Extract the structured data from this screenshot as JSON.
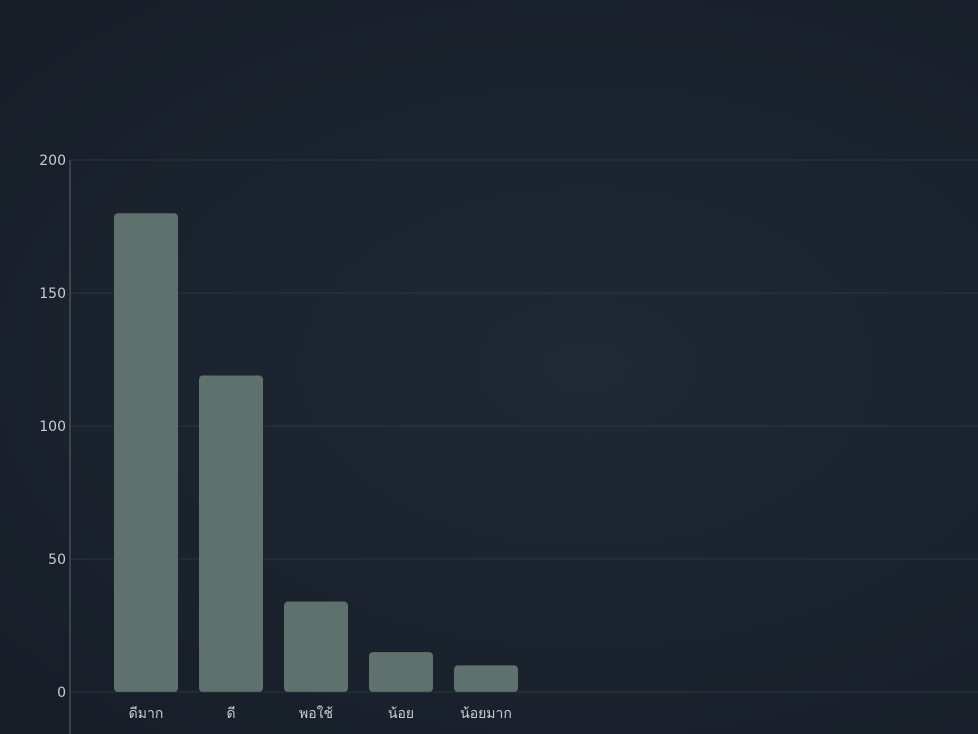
{
  "chart_data": {
    "type": "bar",
    "categories": [
      "ดีมาก",
      "ดี",
      "พอใช้",
      "น้อย",
      "น้อยมาก"
    ],
    "values": [
      180,
      119,
      34,
      15,
      10
    ],
    "title": "",
    "xlabel": "",
    "ylabel": "",
    "ylim": [
      0,
      200
    ],
    "yticks": [
      0,
      50,
      100,
      150,
      200
    ],
    "grid": true,
    "colors": {
      "bar": "#5f716d",
      "gridline": "#3a4350",
      "axis": "#8a919b",
      "text": "#c8ccd2"
    }
  }
}
